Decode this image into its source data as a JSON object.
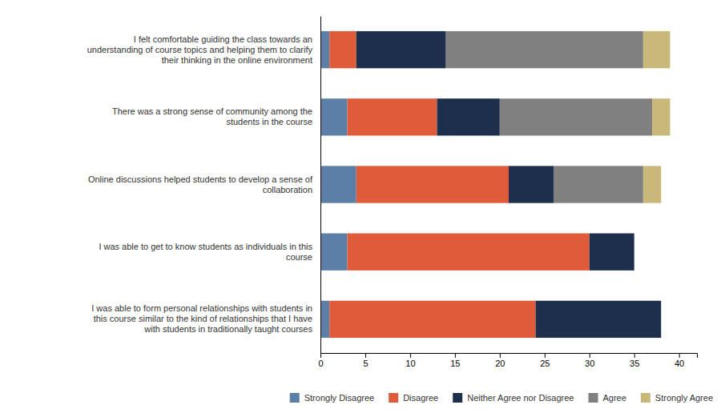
{
  "chart_data": {
    "type": "bar",
    "orientation": "horizontal",
    "stacked": true,
    "categories": [
      "I felt comfortable guiding the class towards an\nunderstanding of course topics and helping them to clarify\ntheir thinking in the online environment",
      "There was a strong sense of community among the\nstudents in the course",
      "Online discussions helped students to develop a sense of\ncollaboration",
      "I was able to get to know students as individuals in this\ncourse",
      "I was able to form personal relationships with students in\nthis course similar to the kind of relationships that I have\nwith students in traditionally taught courses"
    ],
    "series": [
      {
        "name": "Strongly Disagree",
        "color": "#5b7fa6",
        "values": [
          1,
          3,
          4,
          3,
          1
        ]
      },
      {
        "name": "Disagree",
        "color": "#e05b3a",
        "values": [
          3,
          10,
          17,
          27,
          23
        ]
      },
      {
        "name": "Neither Agree nor Disagree",
        "color": "#1e2f4d",
        "values": [
          10,
          7,
          5,
          5,
          14
        ]
      },
      {
        "name": "Agree",
        "color": "#808080",
        "values": [
          22,
          17,
          10,
          0,
          0
        ]
      },
      {
        "name": "Strongly Agree",
        "color": "#c8b87a",
        "values": [
          3,
          2,
          2,
          0,
          0
        ]
      }
    ],
    "xlim": [
      0,
      42
    ],
    "xticks": [
      0,
      5,
      10,
      15,
      20,
      25,
      30,
      35,
      40
    ],
    "grid": false,
    "legend": "bottom"
  }
}
